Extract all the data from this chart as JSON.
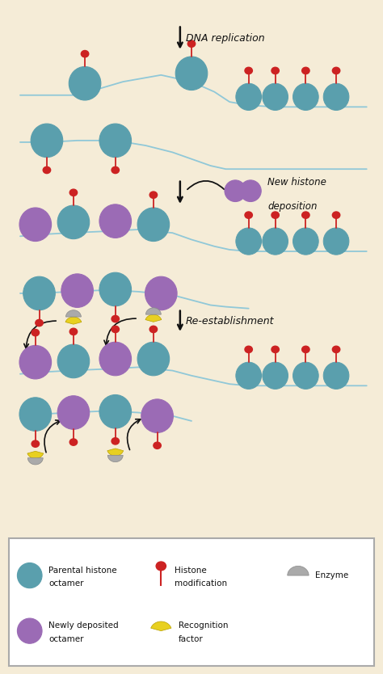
{
  "bg_color": "#f5ecd7",
  "teal": "#5a9fad",
  "teal_edge": "#3a7a8a",
  "purple": "#9b6bb5",
  "purple_edge": "#7a4d99",
  "red": "#cc2222",
  "yellow": "#e8d020",
  "yellow_edge": "#b8a000",
  "gray": "#aaaaaa",
  "gray_edge": "#888888",
  "black": "#111111",
  "line_color": "#90c8d8",
  "border_color": "#aaaaaa",
  "label_dna": "DNA replication",
  "label_histone_line1": "New histone",
  "label_histone_line2": "deposition",
  "label_reest": "Re-establishment"
}
